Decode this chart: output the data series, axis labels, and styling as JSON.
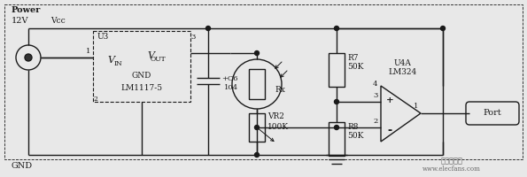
{
  "bg_color": "#e8e8e8",
  "line_color": "#1a1a1a",
  "power_label": "Power",
  "v12_label": "12V",
  "vcc_label": "Vcc",
  "gnd_label": "GND",
  "u3_label": "U3",
  "vin_label": "V",
  "vin_sub": "IN",
  "vout_label": "V",
  "vout_sub": "OUT",
  "gnd2_label": "GND",
  "lm_label": "LM1117-5",
  "c6_label": "C6",
  "c6_val": "104",
  "vr2_label": "VR2",
  "vr2_val": "100K",
  "rx_label": "Rx",
  "r7_label": "R7",
  "r7_val": "50K",
  "r8_label": "R8",
  "r8_val": "50K",
  "u4a_label": "U4A",
  "lm324_label": "LM324",
  "port_label": "Port",
  "pin4_label": "4",
  "pin3_label": "3",
  "pin2_label": "2",
  "pin1_label": "1",
  "plus_label": "+",
  "minus_label": "-",
  "node1": "1",
  "website": "www.elecfans.com",
  "watermark": "电子发烧友"
}
